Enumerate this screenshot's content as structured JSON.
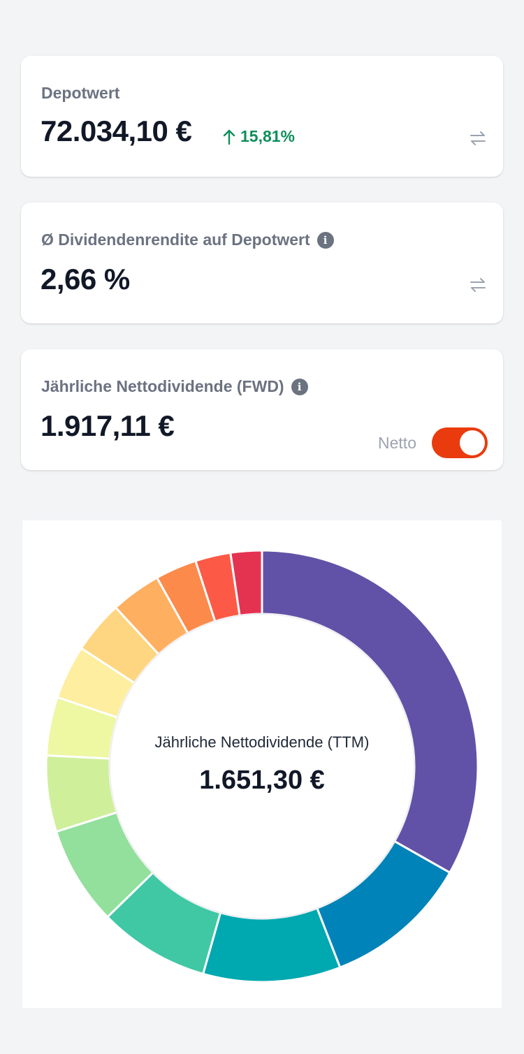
{
  "cards": {
    "portfolio": {
      "label": "Depotwert",
      "value": "72.034,10 €",
      "change": "15,81%",
      "change_direction": "up",
      "change_color": "#0e8f5a"
    },
    "yield": {
      "label": "Ø Dividendenrendite auf Depotwert",
      "value": "2,66 %"
    },
    "fwd": {
      "label": "Jährliche Nettodividende (FWD)",
      "value": "1.917,11 €",
      "toggle_label": "Netto",
      "toggle_on": true,
      "toggle_color": "#ea3b0e"
    }
  },
  "donut": {
    "center_label": "Jährliche Nettodividende (TTM)",
    "center_value": "1.651,30 €"
  },
  "chart_data": {
    "type": "pie",
    "title": "",
    "values": [
      0.3367,
      0.1106,
      0.1043,
      0.0841,
      0.0751,
      0.0578,
      0.0444,
      0.0409,
      0.0399,
      0.0382,
      0.0315,
      0.0268,
      0.0237
    ],
    "colors": [
      "#6152a7",
      "#0083b8",
      "#00a8b0",
      "#40c8a5",
      "#93df9c",
      "#cfef9b",
      "#eef7a2",
      "#fdeea0",
      "#fed580",
      "#feaf60",
      "#fc8a4b",
      "#fc5a46",
      "#e43351"
    ]
  }
}
